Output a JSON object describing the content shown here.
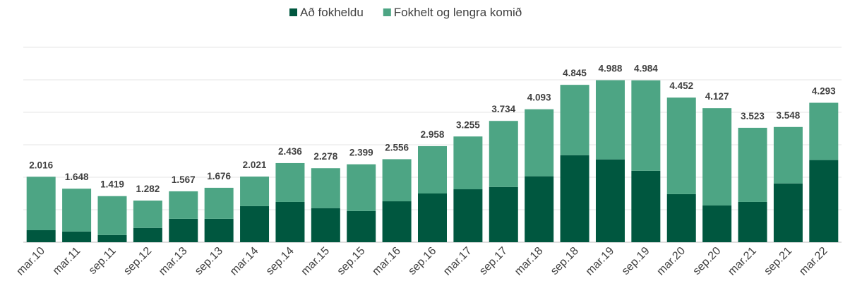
{
  "chart_data": {
    "type": "stacked_bar",
    "categories": [
      "mar.10",
      "mar.11",
      "sep.11",
      "sep.12",
      "mar.13",
      "sep.13",
      "mar.14",
      "sep.14",
      "mar.15",
      "sep.15",
      "mar.16",
      "sep.16",
      "mar.17",
      "sep.17",
      "mar.18",
      "sep.18",
      "mar.19",
      "sep.19",
      "mar.20",
      "sep.20",
      "mar.21",
      "sep.21",
      "mar.22"
    ],
    "series": [
      {
        "name": "Að fokheldu",
        "color": "#00573f",
        "values": [
          0.37,
          0.33,
          0.22,
          0.44,
          0.72,
          0.72,
          1.11,
          1.24,
          1.05,
          0.96,
          1.26,
          1.5,
          1.63,
          1.7,
          2.03,
          2.68,
          2.55,
          2.2,
          1.48,
          1.13,
          1.24,
          1.81,
          2.53
        ]
      },
      {
        "name": "Fokhelt og lengra komið",
        "color": "#4da584",
        "values": [
          1.646,
          1.318,
          1.199,
          0.842,
          0.847,
          0.956,
          0.911,
          1.196,
          1.228,
          1.439,
          1.296,
          1.458,
          1.625,
          2.034,
          2.063,
          2.165,
          2.438,
          2.784,
          2.972,
          2.997,
          2.283,
          1.738,
          1.763
        ]
      }
    ],
    "totals": [
      2.016,
      1.648,
      1.419,
      1.282,
      1.567,
      1.676,
      2.021,
      2.436,
      2.278,
      2.399,
      2.556,
      2.958,
      3.255,
      3.734,
      4.093,
      4.845,
      4.988,
      4.984,
      4.452,
      4.127,
      3.523,
      3.548,
      4.293
    ],
    "ylim": [
      0,
      6
    ],
    "yticks": [
      0,
      1,
      2,
      3,
      4,
      5,
      6
    ],
    "grid": true,
    "legend": "top"
  }
}
